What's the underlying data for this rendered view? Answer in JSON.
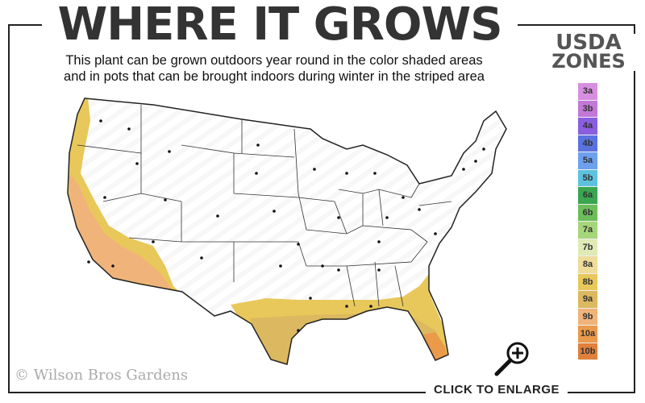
{
  "header": {
    "title": "WHERE IT GROWS",
    "subtitle_line1": "This plant can be grown outdoors year round in the color shaded areas",
    "subtitle_line2": "and in pots that can be brought indoors during winter in the striped area"
  },
  "legend": {
    "title_line1": "USDA",
    "title_line2": "ZONES",
    "zones": [
      {
        "label": "3a",
        "color": "#d88ee0"
      },
      {
        "label": "3b",
        "color": "#c178d6"
      },
      {
        "label": "4a",
        "color": "#8a5ee0"
      },
      {
        "label": "4b",
        "color": "#5a72e0"
      },
      {
        "label": "5a",
        "color": "#6ea0f0"
      },
      {
        "label": "5b",
        "color": "#5cc2de"
      },
      {
        "label": "6a",
        "color": "#3aa650"
      },
      {
        "label": "6b",
        "color": "#6cbe5a"
      },
      {
        "label": "7a",
        "color": "#a6d67a"
      },
      {
        "label": "7b",
        "color": "#dfeab4"
      },
      {
        "label": "8a",
        "color": "#eedc9a"
      },
      {
        "label": "8b",
        "color": "#e8c85a"
      },
      {
        "label": "9a",
        "color": "#dcb860"
      },
      {
        "label": "9b",
        "color": "#f0b47a"
      },
      {
        "label": "10a",
        "color": "#eb9a4a"
      },
      {
        "label": "10b",
        "color": "#e0803a"
      }
    ]
  },
  "map": {
    "shaded_zones": [
      "8a",
      "8b",
      "9a",
      "9b",
      "10a",
      "10b"
    ]
  },
  "footer": {
    "copyright": "© Wilson Bros Gardens",
    "enlarge_label": "CLICK TO ENLARGE"
  }
}
